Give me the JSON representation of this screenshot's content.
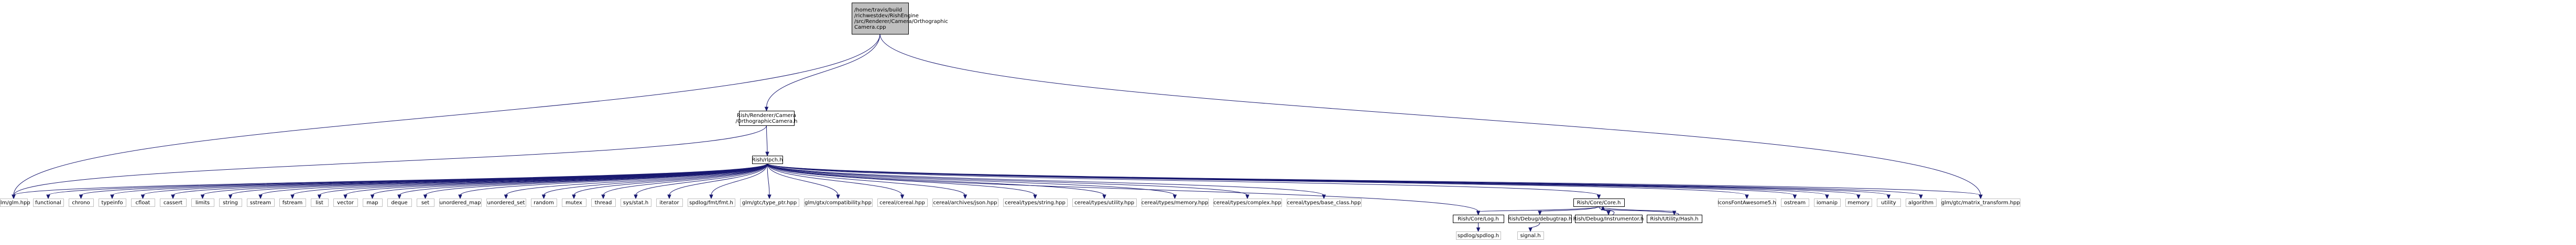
{
  "diagram": {
    "nodes": [
      {
        "id": "root",
        "lines": [
          "/home/travis/build",
          "/richwestdev/RishEngine",
          "/src/Renderer/Camera/Orthographic",
          "Camera.cpp"
        ],
        "style": "root"
      },
      {
        "id": "orthoh",
        "lines": [
          "Rish/Renderer/Camera",
          "/OrthographicCamera.h"
        ],
        "style": "normal"
      },
      {
        "id": "rlpch",
        "lines": [
          "Rish/rlpch.h"
        ],
        "style": "normal"
      },
      {
        "id": "glm",
        "lines": [
          "glm/glm.hpp"
        ],
        "style": "gray"
      },
      {
        "id": "functional",
        "lines": [
          "functional"
        ],
        "style": "gray"
      },
      {
        "id": "chrono",
        "lines": [
          "chrono"
        ],
        "style": "gray"
      },
      {
        "id": "typeinfo",
        "lines": [
          "typeinfo"
        ],
        "style": "gray"
      },
      {
        "id": "cfloat",
        "lines": [
          "cfloat"
        ],
        "style": "gray"
      },
      {
        "id": "cassert",
        "lines": [
          "cassert"
        ],
        "style": "gray"
      },
      {
        "id": "limits",
        "lines": [
          "limits"
        ],
        "style": "gray"
      },
      {
        "id": "string",
        "lines": [
          "string"
        ],
        "style": "gray"
      },
      {
        "id": "sstream",
        "lines": [
          "sstream"
        ],
        "style": "gray"
      },
      {
        "id": "fstream",
        "lines": [
          "fstream"
        ],
        "style": "gray"
      },
      {
        "id": "list",
        "lines": [
          "list"
        ],
        "style": "gray"
      },
      {
        "id": "vector",
        "lines": [
          "vector"
        ],
        "style": "gray"
      },
      {
        "id": "map",
        "lines": [
          "map"
        ],
        "style": "gray"
      },
      {
        "id": "deque",
        "lines": [
          "deque"
        ],
        "style": "gray"
      },
      {
        "id": "set",
        "lines": [
          "set"
        ],
        "style": "gray"
      },
      {
        "id": "umap",
        "lines": [
          "unordered_map"
        ],
        "style": "gray"
      },
      {
        "id": "uset",
        "lines": [
          "unordered_set"
        ],
        "style": "gray"
      },
      {
        "id": "random",
        "lines": [
          "random"
        ],
        "style": "gray"
      },
      {
        "id": "mutex",
        "lines": [
          "mutex"
        ],
        "style": "gray"
      },
      {
        "id": "thread",
        "lines": [
          "thread"
        ],
        "style": "gray"
      },
      {
        "id": "sysstat",
        "lines": [
          "sys/stat.h"
        ],
        "style": "gray"
      },
      {
        "id": "iterator",
        "lines": [
          "iterator"
        ],
        "style": "gray"
      },
      {
        "id": "spdfmt",
        "lines": [
          "spdlog/fmt/fmt.h"
        ],
        "style": "gray"
      },
      {
        "id": "glmptr",
        "lines": [
          "glm/gtc/type_ptr.hpp"
        ],
        "style": "gray"
      },
      {
        "id": "glmcompat",
        "lines": [
          "glm/gtx/compatibility.hpp"
        ],
        "style": "gray"
      },
      {
        "id": "cereal",
        "lines": [
          "cereal/cereal.hpp"
        ],
        "style": "gray"
      },
      {
        "id": "cerjson",
        "lines": [
          "cereal/archives/json.hpp"
        ],
        "style": "gray"
      },
      {
        "id": "cerstr",
        "lines": [
          "cereal/types/string.hpp"
        ],
        "style": "gray"
      },
      {
        "id": "cerutil",
        "lines": [
          "cereal/types/utility.hpp"
        ],
        "style": "gray"
      },
      {
        "id": "cermem",
        "lines": [
          "cereal/types/memory.hpp"
        ],
        "style": "gray"
      },
      {
        "id": "cercomplex",
        "lines": [
          "cereal/types/complex.hpp"
        ],
        "style": "gray"
      },
      {
        "id": "cerbase",
        "lines": [
          "cereal/types/base_class.hpp"
        ],
        "style": "gray"
      },
      {
        "id": "core",
        "lines": [
          "Rish/Core/Core.h"
        ],
        "style": "normal"
      },
      {
        "id": "icons",
        "lines": [
          "IconsFontAwesome5.h"
        ],
        "style": "gray"
      },
      {
        "id": "ostream",
        "lines": [
          "ostream"
        ],
        "style": "gray"
      },
      {
        "id": "iomanip",
        "lines": [
          "iomanip"
        ],
        "style": "gray"
      },
      {
        "id": "memory",
        "lines": [
          "memory"
        ],
        "style": "gray"
      },
      {
        "id": "utility",
        "lines": [
          "utility"
        ],
        "style": "gray"
      },
      {
        "id": "algorithm",
        "lines": [
          "algorithm"
        ],
        "style": "gray"
      },
      {
        "id": "glmmatrix",
        "lines": [
          "glm/gtc/matrix_transform.hpp"
        ],
        "style": "gray"
      },
      {
        "id": "log",
        "lines": [
          "Rish/Core/Log.h"
        ],
        "style": "normal"
      },
      {
        "id": "debugtrap",
        "lines": [
          "Rish/Debug/debugtrap.h"
        ],
        "style": "normal"
      },
      {
        "id": "instrument",
        "lines": [
          "Rish/Debug/Instrumentor.h"
        ],
        "style": "normal"
      },
      {
        "id": "hash",
        "lines": [
          "Rish/Utility/Hash.h"
        ],
        "style": "normal"
      },
      {
        "id": "spdlog",
        "lines": [
          "spdlog/spdlog.h"
        ],
        "style": "gray"
      },
      {
        "id": "signal",
        "lines": [
          "signal.h"
        ],
        "style": "gray"
      }
    ],
    "edges": [
      [
        "root",
        "orthoh"
      ],
      [
        "root",
        "glm"
      ],
      [
        "root",
        "glmmatrix"
      ],
      [
        "orthoh",
        "rlpch"
      ],
      [
        "orthoh",
        "glm"
      ],
      [
        "rlpch",
        "functional"
      ],
      [
        "rlpch",
        "chrono"
      ],
      [
        "rlpch",
        "typeinfo"
      ],
      [
        "rlpch",
        "cfloat"
      ],
      [
        "rlpch",
        "cassert"
      ],
      [
        "rlpch",
        "limits"
      ],
      [
        "rlpch",
        "string"
      ],
      [
        "rlpch",
        "sstream"
      ],
      [
        "rlpch",
        "fstream"
      ],
      [
        "rlpch",
        "list"
      ],
      [
        "rlpch",
        "vector"
      ],
      [
        "rlpch",
        "map"
      ],
      [
        "rlpch",
        "deque"
      ],
      [
        "rlpch",
        "set"
      ],
      [
        "rlpch",
        "umap"
      ],
      [
        "rlpch",
        "uset"
      ],
      [
        "rlpch",
        "random"
      ],
      [
        "rlpch",
        "mutex"
      ],
      [
        "rlpch",
        "thread"
      ],
      [
        "rlpch",
        "sysstat"
      ],
      [
        "rlpch",
        "iterator"
      ],
      [
        "rlpch",
        "spdfmt"
      ],
      [
        "rlpch",
        "glmptr"
      ],
      [
        "rlpch",
        "glmcompat"
      ],
      [
        "rlpch",
        "cereal"
      ],
      [
        "rlpch",
        "cerjson"
      ],
      [
        "rlpch",
        "cerstr"
      ],
      [
        "rlpch",
        "cerutil"
      ],
      [
        "rlpch",
        "cermem"
      ],
      [
        "rlpch",
        "cercomplex"
      ],
      [
        "rlpch",
        "cerbase"
      ],
      [
        "rlpch",
        "core"
      ],
      [
        "rlpch",
        "icons"
      ],
      [
        "rlpch",
        "ostream"
      ],
      [
        "rlpch",
        "iomanip"
      ],
      [
        "rlpch",
        "memory"
      ],
      [
        "rlpch",
        "utility"
      ],
      [
        "rlpch",
        "algorithm"
      ],
      [
        "rlpch",
        "glmmatrix"
      ],
      [
        "rlpch",
        "glm"
      ],
      [
        "rlpch",
        "log"
      ],
      [
        "core",
        "log"
      ],
      [
        "core",
        "debugtrap"
      ],
      [
        "core",
        "instrument"
      ],
      [
        "core",
        "hash"
      ],
      [
        "instrument",
        "core"
      ],
      [
        "hash",
        "core"
      ],
      [
        "log",
        "spdlog"
      ],
      [
        "debugtrap",
        "signal"
      ]
    ]
  }
}
